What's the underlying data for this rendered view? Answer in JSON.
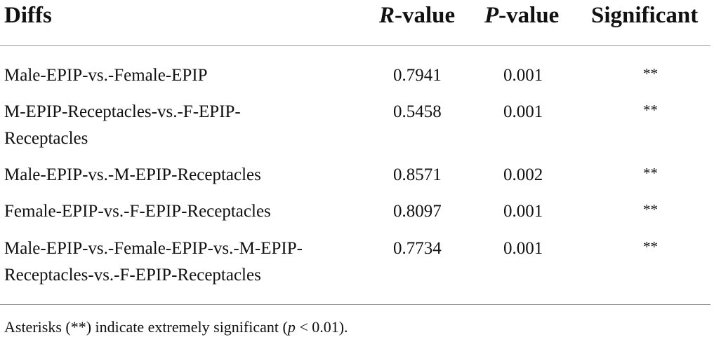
{
  "table": {
    "headers": {
      "diffs": "Diffs",
      "r_italic": "R",
      "r_rest": "-value",
      "p_italic": "P",
      "p_rest": "-value",
      "significant": "Significant"
    },
    "rows": [
      {
        "diff_line1": "Male-EPIP-vs.-Female-EPIP",
        "diff_line2": "",
        "r": "0.7941",
        "p": "0.001",
        "sig": "**"
      },
      {
        "diff_line1": "M-EPIP-Receptacles-vs.-F-EPIP-",
        "diff_line2": "Receptacles",
        "r": "0.5458",
        "p": "0.001",
        "sig": "**"
      },
      {
        "diff_line1": "Male-EPIP-vs.-M-EPIP-Receptacles",
        "diff_line2": "",
        "r": "0.8571",
        "p": "0.002",
        "sig": "**"
      },
      {
        "diff_line1": "Female-EPIP-vs.-F-EPIP-Receptacles",
        "diff_line2": "",
        "r": "0.8097",
        "p": "0.001",
        "sig": "**"
      },
      {
        "diff_line1": "Male-EPIP-vs.-Female-EPIP-vs.-M-EPIP-",
        "diff_line2": "Receptacles-vs.-F-EPIP-Receptacles",
        "r": "0.7734",
        "p": "0.001",
        "sig": "**"
      }
    ]
  },
  "footnote": {
    "before": "Asterisks (**) indicate extremely significant (",
    "p_symbol": "p",
    "after": " < 0.01)."
  }
}
